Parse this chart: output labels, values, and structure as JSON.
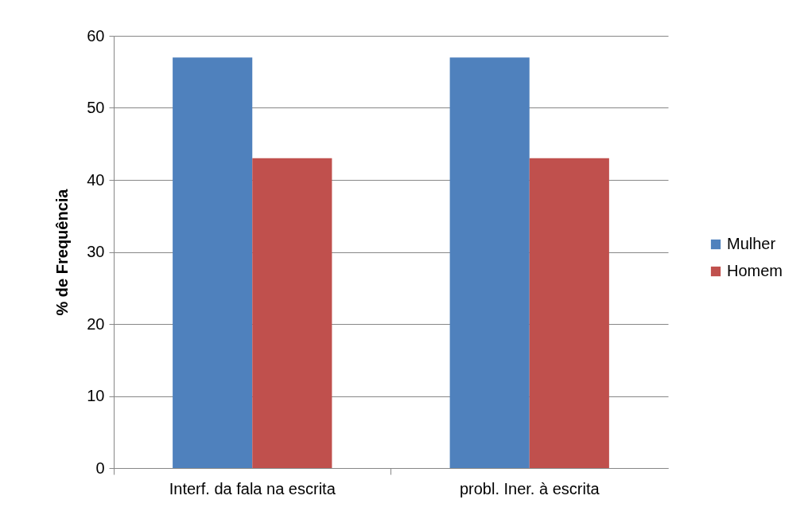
{
  "chart_data": {
    "type": "bar",
    "ylabel": "% de Frequência",
    "categories": [
      "Interf. da fala na escrita",
      "probl. Iner. à escrita"
    ],
    "series": [
      {
        "name": "Mulher",
        "color": "#4f81bd",
        "values": [
          57,
          57
        ]
      },
      {
        "name": "Homem",
        "color": "#c0504d",
        "values": [
          43,
          43
        ]
      }
    ],
    "ylim": [
      0,
      60
    ],
    "yticks": [
      0,
      10,
      20,
      30,
      40,
      50,
      60
    ],
    "grid": "y",
    "legend": "right"
  }
}
